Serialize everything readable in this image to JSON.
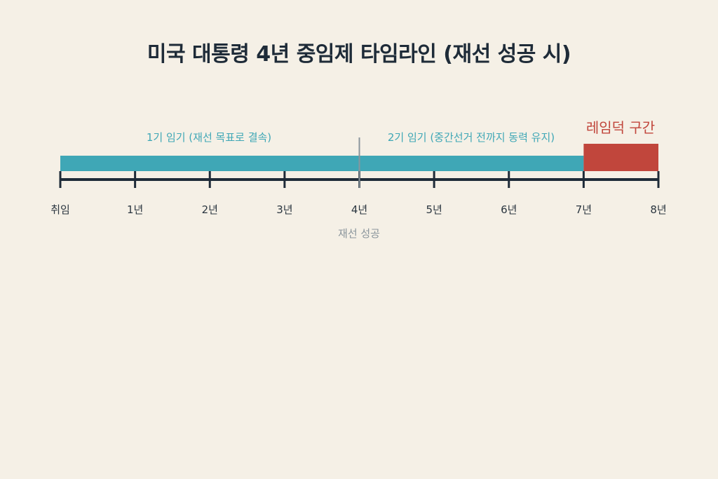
{
  "title": "미국 대통령 4년 중임제 타임라인 (재선 성공 시)",
  "colors": {
    "background": "#f5f0e6",
    "term": "#3fa7b6",
    "lameduck": "#c1463c",
    "axis": "#1e2b38",
    "marker": "#8a959c"
  },
  "timeline": {
    "term_label": "1기 임기 (재선 목표로 결속)",
    "term2_label": "2기 임기 (중간선거 전까지 동력 유지)",
    "lameduck_label": "레임덕 구간",
    "marker_label": "재선 성공",
    "tick_labels": [
      "취임",
      "1년",
      "2년",
      "3년",
      "4년",
      "5년",
      "6년",
      "7년",
      "8년"
    ]
  },
  "chart_data": {
    "type": "timeline",
    "x_range": [
      0,
      8
    ],
    "x_unit": "year",
    "segments": [
      {
        "label": "1기 임기 (재선 목표로 결속)",
        "start": 0,
        "end": 4,
        "color": "#3fa7b6"
      },
      {
        "label": "2기 임기 (중간선거 전까지 동력 유지)",
        "start": 4,
        "end": 7,
        "color": "#3fa7b6"
      },
      {
        "label": "레임덕 구간",
        "start": 7,
        "end": 8,
        "color": "#c1463c"
      }
    ],
    "markers": [
      {
        "label": "재선 성공",
        "at": 4
      }
    ],
    "ticks": [
      0,
      1,
      2,
      3,
      4,
      5,
      6,
      7,
      8
    ]
  }
}
